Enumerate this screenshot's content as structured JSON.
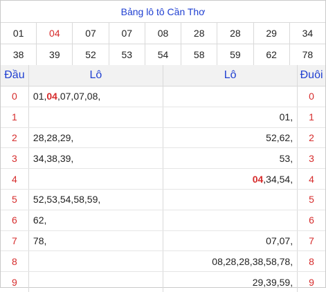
{
  "title": "Bảng lô tô Cần Thơ",
  "numbers_row1": [
    "01",
    "04",
    "07",
    "07",
    "08",
    "28",
    "28",
    "29",
    "34"
  ],
  "numbers_row2": [
    "38",
    "39",
    "52",
    "53",
    "54",
    "58",
    "59",
    "62",
    "78"
  ],
  "highlight": "04",
  "headers": {
    "dau": "Đầu",
    "lo_left": "Lô",
    "lo_right": "Lô",
    "duoi": "Đuôi"
  },
  "rows": [
    {
      "dau": "0",
      "left": [
        "01",
        "04",
        "07",
        "07",
        "08"
      ],
      "right": [],
      "duoi": "0"
    },
    {
      "dau": "1",
      "left": [],
      "right": [
        "01"
      ],
      "duoi": "1"
    },
    {
      "dau": "2",
      "left": [
        "28",
        "28",
        "29"
      ],
      "right": [
        "52",
        "62"
      ],
      "duoi": "2"
    },
    {
      "dau": "3",
      "left": [
        "34",
        "38",
        "39"
      ],
      "right": [
        "53"
      ],
      "duoi": "3"
    },
    {
      "dau": "4",
      "left": [],
      "right": [
        "04",
        "34",
        "54"
      ],
      "duoi": "4"
    },
    {
      "dau": "5",
      "left": [
        "52",
        "53",
        "54",
        "58",
        "59"
      ],
      "right": [],
      "duoi": "5"
    },
    {
      "dau": "6",
      "left": [
        "62"
      ],
      "right": [],
      "duoi": "6"
    },
    {
      "dau": "7",
      "left": [
        "78"
      ],
      "right": [
        "07",
        "07"
      ],
      "duoi": "7"
    },
    {
      "dau": "8",
      "left": [],
      "right": [
        "08",
        "28",
        "28",
        "38",
        "58",
        "78"
      ],
      "duoi": "8"
    },
    {
      "dau": "9",
      "left": [],
      "right": [
        "29",
        "39",
        "59"
      ],
      "duoi": "9"
    }
  ],
  "colors": {
    "title": "#1f3fd1",
    "highlight": "#d62b2b",
    "index": "#d62b2b"
  }
}
